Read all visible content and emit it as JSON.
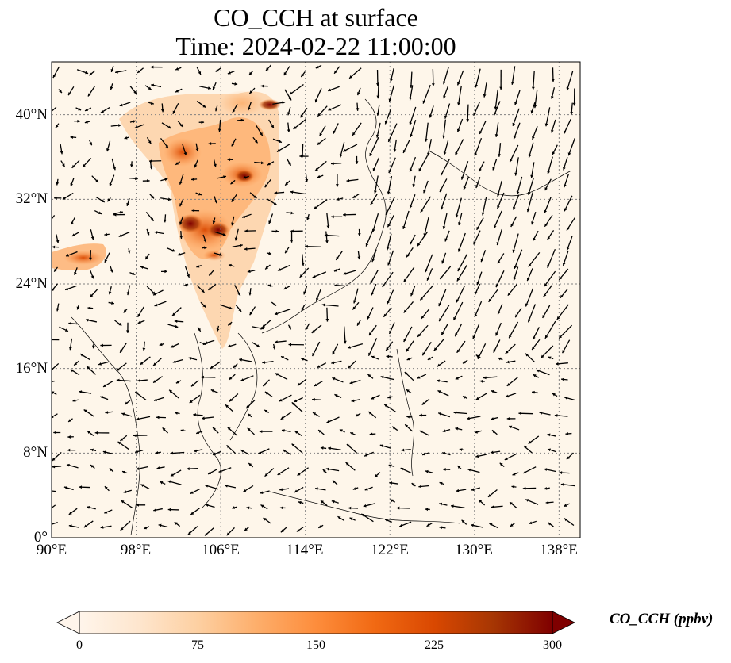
{
  "title": {
    "line1": "CO_CCH at surface",
    "line2": "Time: 2024-02-22 11:00:00"
  },
  "map": {
    "type": "map",
    "projection": "PlateCarree",
    "lon_range": [
      90,
      140
    ],
    "lat_range": [
      0,
      45
    ],
    "gridlines": "dotted",
    "coastlines": true,
    "borders": true,
    "overlay": "wind-vectors",
    "lat_ticks": [
      {
        "value": 0,
        "label": "0°"
      },
      {
        "value": 8,
        "label": "8°N"
      },
      {
        "value": 16,
        "label": "16°N"
      },
      {
        "value": 24,
        "label": "24°N"
      },
      {
        "value": 32,
        "label": "32°N"
      },
      {
        "value": 40,
        "label": "40°N"
      }
    ],
    "lon_ticks": [
      {
        "value": 90,
        "label": "90°E"
      },
      {
        "value": 98,
        "label": "98°E"
      },
      {
        "value": 106,
        "label": "106°E"
      },
      {
        "value": 114,
        "label": "114°E"
      },
      {
        "value": 122,
        "label": "122°E"
      },
      {
        "value": 130,
        "label": "130°E"
      },
      {
        "value": 138,
        "label": "138°E"
      }
    ]
  },
  "colorbar": {
    "label": "CO_CCH (ppbv)",
    "min": 0,
    "max": 300,
    "extend": "both",
    "colormap": [
      "#fff5eb",
      "#fee6ce",
      "#fdd0a2",
      "#fdae6b",
      "#fd8d3c",
      "#f16913",
      "#d94801",
      "#a63603",
      "#7f0000"
    ],
    "ticks": [
      {
        "value": 0,
        "label": "0"
      },
      {
        "value": 75,
        "label": "75"
      },
      {
        "value": 150,
        "label": "150"
      },
      {
        "value": 225,
        "label": "225"
      },
      {
        "value": 300,
        "label": "300"
      }
    ]
  },
  "colors": {
    "background": "#fef6ea",
    "arrow": "#000000",
    "grid": "#808080"
  }
}
